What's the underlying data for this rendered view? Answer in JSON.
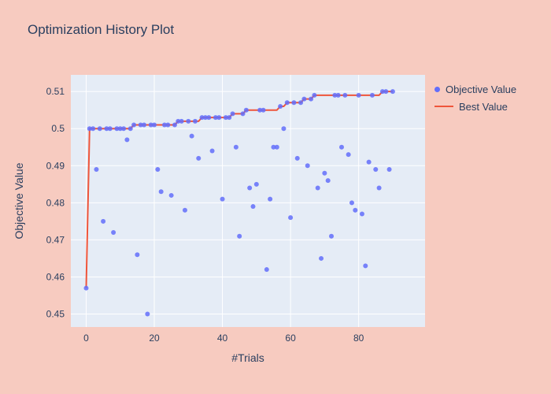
{
  "colors": {
    "page_bg": "#f7cbc0",
    "plot_bg": "#e5ecf6",
    "grid": "#ffffff",
    "text": "#2a3f5f",
    "marker": "#636efa",
    "line": "#ef553b"
  },
  "chart": {
    "legend": {
      "objective_label": "Objective Value",
      "best_label": "Best Value"
    }
  },
  "chart_data": {
    "type": "scatter",
    "title": "Optimization History Plot",
    "xlabel": "#Trials",
    "ylabel": "Objective Value",
    "xlim": [
      -4.5,
      99.5
    ],
    "ylim": [
      0.4465,
      0.5145
    ],
    "x_ticks": [
      0,
      20,
      40,
      60,
      80
    ],
    "y_ticks": [
      0.45,
      0.46,
      0.47,
      0.48,
      0.49,
      0.5,
      0.51
    ],
    "y_tick_labels": [
      "0.45",
      "0.46",
      "0.47",
      "0.48",
      "0.49",
      "0.5",
      "0.51"
    ],
    "grid": true,
    "legend_position": "right",
    "series": [
      {
        "name": "Objective Value",
        "type": "scatter",
        "color": "#636efa",
        "x": [
          0,
          1,
          2,
          3,
          4,
          5,
          6,
          7,
          8,
          9,
          10,
          11,
          12,
          13,
          14,
          15,
          16,
          17,
          18,
          19,
          20,
          21,
          22,
          23,
          24,
          25,
          26,
          27,
          28,
          29,
          30,
          31,
          32,
          33,
          34,
          35,
          36,
          37,
          38,
          39,
          40,
          41,
          42,
          43,
          44,
          45,
          46,
          47,
          48,
          49,
          50,
          51,
          52,
          53,
          54,
          55,
          56,
          57,
          58,
          59,
          60,
          61,
          62,
          63,
          64,
          65,
          66,
          67,
          68,
          69,
          70,
          71,
          72,
          73,
          74,
          75,
          76,
          77,
          78,
          79,
          80,
          81,
          82,
          83,
          84,
          85,
          86,
          87,
          88,
          89,
          90
        ],
        "y": [
          0.457,
          0.5,
          0.5,
          0.489,
          0.5,
          0.475,
          0.5,
          0.5,
          0.472,
          0.5,
          0.5,
          0.5,
          0.497,
          0.5,
          0.501,
          0.466,
          0.501,
          0.501,
          0.45,
          0.501,
          0.501,
          0.489,
          0.483,
          0.501,
          0.501,
          0.482,
          0.501,
          0.502,
          0.502,
          0.478,
          0.502,
          0.498,
          0.502,
          0.492,
          0.503,
          0.503,
          0.503,
          0.494,
          0.503,
          0.503,
          0.481,
          0.503,
          0.503,
          0.504,
          0.495,
          0.471,
          0.504,
          0.505,
          0.484,
          0.479,
          0.485,
          0.505,
          0.505,
          0.462,
          0.481,
          0.495,
          0.495,
          0.506,
          0.5,
          0.507,
          0.476,
          0.507,
          0.492,
          0.507,
          0.508,
          0.49,
          0.508,
          0.509,
          0.484,
          0.465,
          0.488,
          0.486,
          0.471,
          0.509,
          0.509,
          0.495,
          0.509,
          0.493,
          0.48,
          0.478,
          0.509,
          0.477,
          0.463,
          0.491,
          0.509,
          0.489,
          0.484,
          0.51,
          0.51,
          0.489,
          0.51
        ]
      },
      {
        "name": "Best Value",
        "type": "line",
        "color": "#ef553b",
        "derivation": "running maximum of Objective Value series"
      }
    ]
  }
}
